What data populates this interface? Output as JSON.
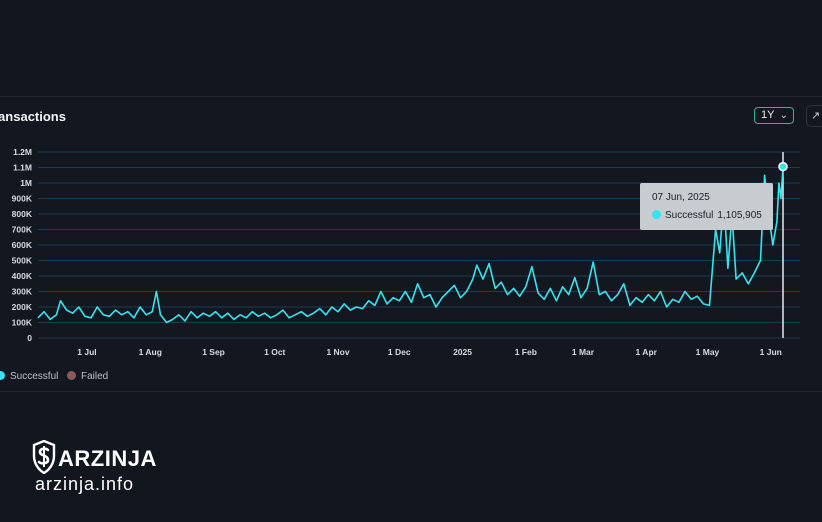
{
  "card": {
    "title": "ransactions",
    "range_label": "1Y",
    "expand_icon": "expand-arrows-icon"
  },
  "tooltip": {
    "date": "07 Jun, 2025",
    "series": "Successful",
    "value": "1,105,905"
  },
  "legend": [
    {
      "label": "Successful",
      "color": "#36e4f0"
    },
    {
      "label": "Failed",
      "color": "#8a5a5e"
    }
  ],
  "logo": {
    "brand": "ARZINJA",
    "url": "arzinja.info",
    "icon": "shield-dollar-icon"
  },
  "chart_data": {
    "type": "line",
    "x_start": "2024-06-07",
    "x_end": "2025-06-07",
    "x_ticks": [
      {
        "date": "2024-07-01",
        "label": "1 Jul"
      },
      {
        "date": "2024-08-01",
        "label": "1 Aug"
      },
      {
        "date": "2024-09-01",
        "label": "1 Sep"
      },
      {
        "date": "2024-10-01",
        "label": "1 Oct"
      },
      {
        "date": "2024-11-01",
        "label": "1 Nov"
      },
      {
        "date": "2024-12-01",
        "label": "1 Dec"
      },
      {
        "date": "2025-01-01",
        "label": "2025"
      },
      {
        "date": "2025-02-01",
        "label": "1 Feb"
      },
      {
        "date": "2025-03-01",
        "label": "1 Mar"
      },
      {
        "date": "2025-04-01",
        "label": "1 Apr"
      },
      {
        "date": "2025-05-01",
        "label": "1 May"
      },
      {
        "date": "2025-06-01",
        "label": "1 Jun"
      }
    ],
    "y_ticks": [
      {
        "value": 0,
        "label": "0"
      },
      {
        "value": 100000,
        "label": "100K"
      },
      {
        "value": 200000,
        "label": "200K"
      },
      {
        "value": 300000,
        "label": "300K"
      },
      {
        "value": 400000,
        "label": "400K"
      },
      {
        "value": 500000,
        "label": "500K"
      },
      {
        "value": 600000,
        "label": "600K"
      },
      {
        "value": 700000,
        "label": "700K"
      },
      {
        "value": 800000,
        "label": "800K"
      },
      {
        "value": 900000,
        "label": "900K"
      },
      {
        "value": 1000000,
        "label": "1M"
      },
      {
        "value": 1100000,
        "label": "1.1M"
      },
      {
        "value": 1200000,
        "label": "1.2M"
      }
    ],
    "ylim": [
      0,
      1200000
    ],
    "grid": true,
    "legend_position": "bottom-left",
    "highlight": {
      "date": "2025-06-07",
      "value": 1105905
    },
    "series": [
      {
        "name": "Successful",
        "color": "#36e4f0",
        "points": [
          [
            "2024-06-07",
            130000
          ],
          [
            "2024-06-10",
            170000
          ],
          [
            "2024-06-13",
            120000
          ],
          [
            "2024-06-16",
            150000
          ],
          [
            "2024-06-18",
            240000
          ],
          [
            "2024-06-21",
            180000
          ],
          [
            "2024-06-24",
            160000
          ],
          [
            "2024-06-27",
            200000
          ],
          [
            "2024-06-30",
            140000
          ],
          [
            "2024-07-03",
            130000
          ],
          [
            "2024-07-06",
            200000
          ],
          [
            "2024-07-09",
            150000
          ],
          [
            "2024-07-12",
            140000
          ],
          [
            "2024-07-15",
            180000
          ],
          [
            "2024-07-18",
            150000
          ],
          [
            "2024-07-21",
            170000
          ],
          [
            "2024-07-24",
            130000
          ],
          [
            "2024-07-27",
            200000
          ],
          [
            "2024-07-30",
            150000
          ],
          [
            "2024-08-02",
            170000
          ],
          [
            "2024-08-04",
            300000
          ],
          [
            "2024-08-06",
            150000
          ],
          [
            "2024-08-09",
            100000
          ],
          [
            "2024-08-12",
            120000
          ],
          [
            "2024-08-15",
            150000
          ],
          [
            "2024-08-18",
            110000
          ],
          [
            "2024-08-21",
            170000
          ],
          [
            "2024-08-24",
            130000
          ],
          [
            "2024-08-27",
            160000
          ],
          [
            "2024-08-30",
            140000
          ],
          [
            "2024-09-02",
            170000
          ],
          [
            "2024-09-05",
            130000
          ],
          [
            "2024-09-08",
            160000
          ],
          [
            "2024-09-11",
            120000
          ],
          [
            "2024-09-14",
            150000
          ],
          [
            "2024-09-17",
            130000
          ],
          [
            "2024-09-20",
            170000
          ],
          [
            "2024-09-23",
            140000
          ],
          [
            "2024-09-26",
            160000
          ],
          [
            "2024-09-29",
            130000
          ],
          [
            "2024-10-02",
            150000
          ],
          [
            "2024-10-05",
            180000
          ],
          [
            "2024-10-08",
            130000
          ],
          [
            "2024-10-11",
            150000
          ],
          [
            "2024-10-14",
            170000
          ],
          [
            "2024-10-17",
            140000
          ],
          [
            "2024-10-20",
            160000
          ],
          [
            "2024-10-23",
            190000
          ],
          [
            "2024-10-26",
            150000
          ],
          [
            "2024-10-29",
            200000
          ],
          [
            "2024-11-01",
            170000
          ],
          [
            "2024-11-04",
            220000
          ],
          [
            "2024-11-07",
            180000
          ],
          [
            "2024-11-10",
            200000
          ],
          [
            "2024-11-13",
            190000
          ],
          [
            "2024-11-16",
            240000
          ],
          [
            "2024-11-19",
            210000
          ],
          [
            "2024-11-22",
            300000
          ],
          [
            "2024-11-25",
            220000
          ],
          [
            "2024-11-28",
            260000
          ],
          [
            "2024-12-01",
            240000
          ],
          [
            "2024-12-04",
            300000
          ],
          [
            "2024-12-07",
            230000
          ],
          [
            "2024-12-10",
            350000
          ],
          [
            "2024-12-13",
            260000
          ],
          [
            "2024-12-16",
            280000
          ],
          [
            "2024-12-19",
            200000
          ],
          [
            "2024-12-22",
            260000
          ],
          [
            "2024-12-25",
            300000
          ],
          [
            "2024-12-28",
            340000
          ],
          [
            "2024-12-31",
            260000
          ],
          [
            "2025-01-03",
            300000
          ],
          [
            "2025-01-06",
            380000
          ],
          [
            "2025-01-08",
            470000
          ],
          [
            "2025-01-11",
            380000
          ],
          [
            "2025-01-14",
            480000
          ],
          [
            "2025-01-17",
            320000
          ],
          [
            "2025-01-20",
            360000
          ],
          [
            "2025-01-23",
            280000
          ],
          [
            "2025-01-26",
            320000
          ],
          [
            "2025-01-29",
            270000
          ],
          [
            "2025-02-01",
            330000
          ],
          [
            "2025-02-04",
            460000
          ],
          [
            "2025-02-07",
            290000
          ],
          [
            "2025-02-10",
            250000
          ],
          [
            "2025-02-13",
            320000
          ],
          [
            "2025-02-16",
            240000
          ],
          [
            "2025-02-19",
            330000
          ],
          [
            "2025-02-22",
            280000
          ],
          [
            "2025-02-25",
            390000
          ],
          [
            "2025-02-28",
            260000
          ],
          [
            "2025-03-03",
            320000
          ],
          [
            "2025-03-06",
            490000
          ],
          [
            "2025-03-09",
            280000
          ],
          [
            "2025-03-12",
            300000
          ],
          [
            "2025-03-15",
            240000
          ],
          [
            "2025-03-18",
            280000
          ],
          [
            "2025-03-21",
            350000
          ],
          [
            "2025-03-24",
            210000
          ],
          [
            "2025-03-27",
            260000
          ],
          [
            "2025-03-30",
            230000
          ],
          [
            "2025-04-02",
            280000
          ],
          [
            "2025-04-05",
            240000
          ],
          [
            "2025-04-08",
            300000
          ],
          [
            "2025-04-11",
            200000
          ],
          [
            "2025-04-14",
            250000
          ],
          [
            "2025-04-17",
            230000
          ],
          [
            "2025-04-20",
            300000
          ],
          [
            "2025-04-23",
            250000
          ],
          [
            "2025-04-26",
            270000
          ],
          [
            "2025-04-29",
            220000
          ],
          [
            "2025-05-02",
            210000
          ],
          [
            "2025-05-05",
            700000
          ],
          [
            "2025-05-07",
            550000
          ],
          [
            "2025-05-09",
            900000
          ],
          [
            "2025-05-11",
            450000
          ],
          [
            "2025-05-13",
            800000
          ],
          [
            "2025-05-15",
            380000
          ],
          [
            "2025-05-18",
            420000
          ],
          [
            "2025-05-21",
            350000
          ],
          [
            "2025-05-24",
            420000
          ],
          [
            "2025-05-27",
            500000
          ],
          [
            "2025-05-29",
            1050000
          ],
          [
            "2025-05-31",
            800000
          ],
          [
            "2025-06-02",
            600000
          ],
          [
            "2025-06-04",
            750000
          ],
          [
            "2025-06-05",
            1000000
          ],
          [
            "2025-06-06",
            900000
          ],
          [
            "2025-06-07",
            1105905
          ]
        ]
      },
      {
        "name": "Failed",
        "color": "#8a5a5e",
        "points": []
      }
    ]
  }
}
